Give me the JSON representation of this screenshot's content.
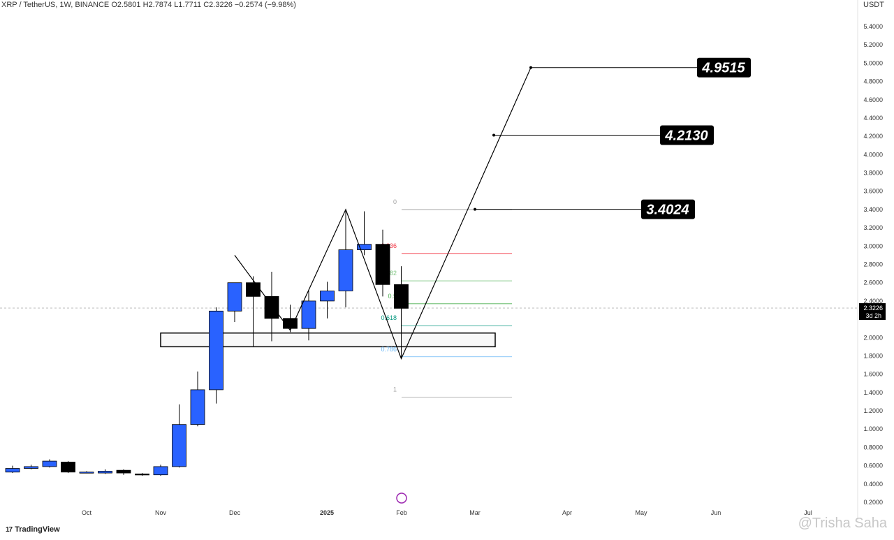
{
  "header": {
    "text": "XRP / TetherUS, 1W, BINANCE  O2.5801  H2.7874  L1.7711  C2.3226  −0.2574 (−9.98%)"
  },
  "currency": "USDT",
  "branding": {
    "logo": "TradingView",
    "watermark": "@Trisha Saha"
  },
  "colors": {
    "up": "#2962ff",
    "down": "#000000",
    "fib0": "#9e9e9e",
    "fib236": "#f23645",
    "fib382": "#81c784",
    "fib5": "#4caf50",
    "fib618": "#089981",
    "fib786": "#64b5f6",
    "fib1": "#9e9e9e"
  },
  "chart_data": {
    "type": "candlestick",
    "ylim": [
      0.1,
      5.5
    ],
    "y_ticks": [
      "5.4000",
      "5.2000",
      "5.0000",
      "4.8000",
      "4.6000",
      "4.4000",
      "4.2000",
      "4.0000",
      "3.8000",
      "3.6000",
      "3.4000",
      "3.2000",
      "3.0000",
      "2.8000",
      "2.6000",
      "2.4000",
      "2.0000",
      "1.8000",
      "1.6000",
      "1.4000",
      "1.2000",
      "1.0000",
      "0.8000",
      "0.6000",
      "0.4000",
      "0.2000"
    ],
    "x_labels": [
      "Oct",
      "Nov",
      "Dec",
      "2025",
      "Feb",
      "Mar",
      "Apr",
      "May",
      "Jun",
      "Jul"
    ],
    "last_price": {
      "value": "2.3226",
      "countdown": "3d 2h"
    },
    "candles": [
      [
        0.53,
        0.6,
        0.52,
        0.57
      ],
      [
        0.57,
        0.61,
        0.56,
        0.59
      ],
      [
        0.59,
        0.67,
        0.58,
        0.65
      ],
      [
        0.64,
        0.65,
        0.52,
        0.53
      ],
      [
        0.53,
        0.54,
        0.52,
        0.53
      ],
      [
        0.52,
        0.56,
        0.51,
        0.54
      ],
      [
        0.55,
        0.56,
        0.5,
        0.52
      ],
      [
        0.51,
        0.52,
        0.49,
        0.5
      ],
      [
        0.5,
        0.61,
        0.49,
        0.59
      ],
      [
        0.59,
        1.27,
        0.58,
        1.05
      ],
      [
        1.05,
        1.63,
        1.03,
        1.43
      ],
      [
        1.43,
        2.33,
        1.28,
        2.29
      ],
      [
        2.29,
        2.6,
        2.17,
        2.6
      ],
      [
        2.6,
        2.67,
        1.9,
        2.45
      ],
      [
        2.45,
        2.72,
        1.96,
        2.21
      ],
      [
        2.21,
        2.36,
        2.06,
        2.1
      ],
      [
        2.1,
        2.51,
        1.97,
        2.4
      ],
      [
        2.4,
        2.61,
        2.21,
        2.51
      ],
      [
        2.51,
        3.4,
        2.33,
        2.96
      ],
      [
        2.96,
        3.38,
        2.9,
        3.02
      ],
      [
        3.02,
        3.18,
        2.45,
        2.58
      ],
      [
        2.58,
        2.78,
        1.77,
        2.32
      ]
    ],
    "candle_fields": [
      "open",
      "high",
      "low",
      "close"
    ],
    "fib_levels": [
      {
        "label": "0",
        "price": 3.4
      },
      {
        "label": "0.236",
        "price": 2.92
      },
      {
        "label": "0.382",
        "price": 2.62
      },
      {
        "label": "0.5",
        "price": 2.37
      },
      {
        "label": "0.618",
        "price": 2.13
      },
      {
        "label": "0.786",
        "price": 1.79
      },
      {
        "label": "1",
        "price": 1.35
      }
    ],
    "zigzag": [
      [
        12,
        2.9
      ],
      [
        15,
        2.08
      ],
      [
        18,
        3.4
      ],
      [
        21,
        1.77
      ],
      [
        28,
        4.95
      ]
    ],
    "zone": {
      "from_bar": 8,
      "to_bar": 26,
      "top": 2.05,
      "bottom": 1.9
    },
    "targets": [
      {
        "label": "3.4024",
        "price": 3.4024
      },
      {
        "label": "4.2130",
        "price": 4.213
      },
      {
        "label": "4.9515",
        "price": 4.9515
      }
    ]
  }
}
